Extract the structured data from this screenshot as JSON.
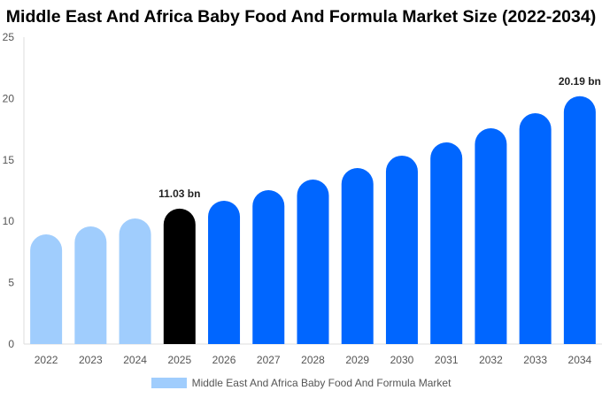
{
  "chart_data": {
    "type": "bar",
    "title": "Middle East And Africa Baby Food And Formula Market Size (2022-2034)",
    "categories": [
      "2022",
      "2023",
      "2024",
      "2025",
      "2026",
      "2027",
      "2028",
      "2029",
      "2030",
      "2031",
      "2032",
      "2033",
      "2034"
    ],
    "series": [
      {
        "name": "Middle East And Africa Baby Food And Formula Market",
        "values": [
          8.93,
          9.58,
          10.23,
          11.03,
          11.67,
          12.54,
          13.4,
          14.34,
          15.35,
          16.43,
          17.58,
          18.8,
          20.19
        ]
      }
    ],
    "data_labels": {
      "3": "11.03 bn",
      "12": "20.19 bn"
    },
    "ylim": [
      0,
      25
    ],
    "yticks": [
      0,
      5,
      10,
      15,
      20,
      25
    ],
    "grid": false,
    "legend_position": "bottom",
    "colors": {
      "historical": "#a0cdfd",
      "current": "#000000",
      "forecast": "#0066ff",
      "legend": "#a0cdfd"
    }
  }
}
